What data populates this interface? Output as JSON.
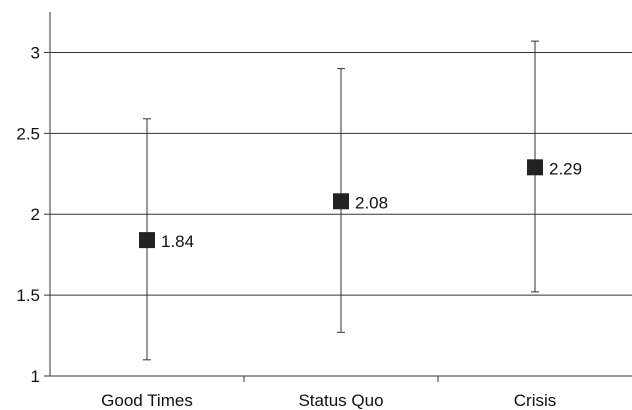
{
  "chart_data": {
    "type": "scatter",
    "title": "",
    "xlabel": "",
    "ylabel": "",
    "categories": [
      "Good Times",
      "Status Quo",
      "Crisis"
    ],
    "values": [
      1.84,
      2.08,
      2.29
    ],
    "value_labels": [
      "1.84",
      "2.08",
      "2.29"
    ],
    "error_low": [
      1.1,
      1.27,
      1.52
    ],
    "error_high": [
      2.59,
      2.9,
      3.07
    ],
    "ylim": [
      1,
      3.25
    ],
    "y_ticks": [
      1,
      1.5,
      2,
      2.5,
      3
    ],
    "y_tick_labels": [
      "1",
      "1.5",
      "2",
      "2.5",
      "3"
    ],
    "grid": true,
    "legend": "none",
    "marker": "square",
    "colors": {
      "marker": "#222222",
      "grid": "#333333",
      "axis": "#333333",
      "error_bar": "#333333"
    }
  }
}
